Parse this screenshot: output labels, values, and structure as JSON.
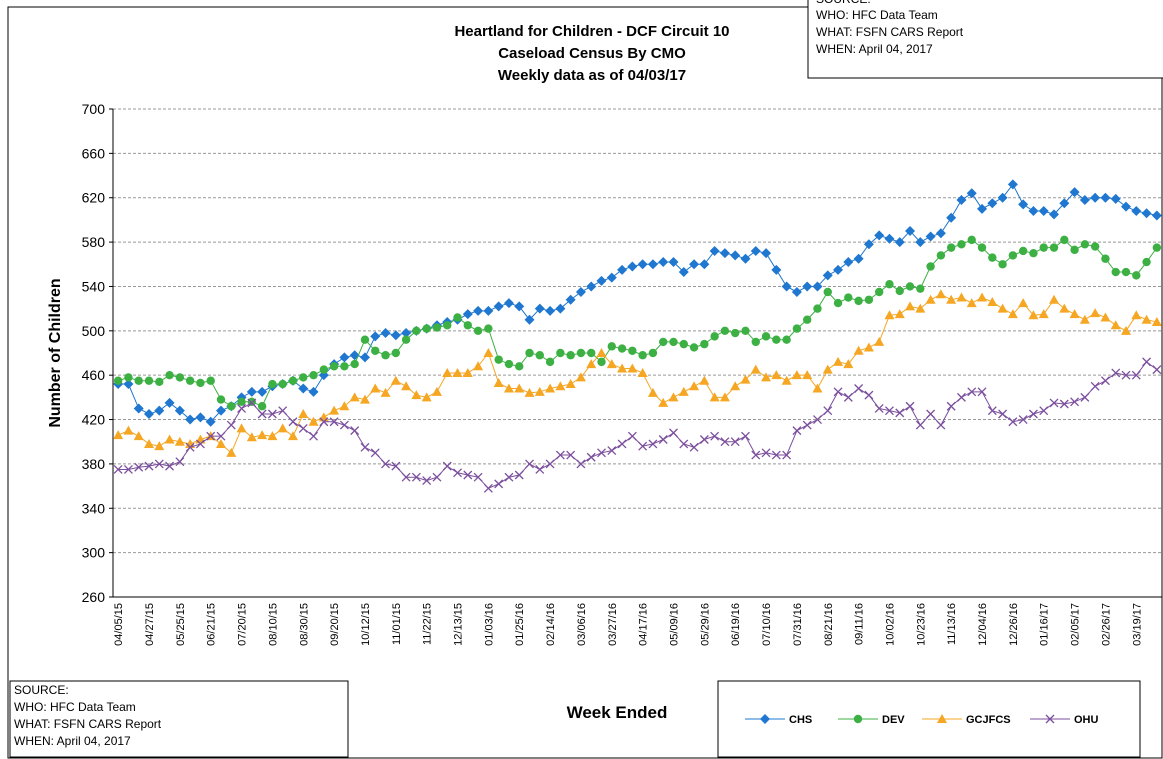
{
  "chart_data": {
    "type": "line",
    "title": [
      "Heartland for Children - DCF Circuit 10",
      "Caseload Census By CMO",
      "Weekly data as of 04/03/17"
    ],
    "x_label": "Week Ended",
    "y_label": "Number of Children",
    "source": [
      "SOURCE:",
      "WHO:  HFC Data Team",
      "WHAT:  FSFN CARS Report",
      "WHEN: April 04, 2017"
    ],
    "categories": [
      "04/05/15",
      null,
      null,
      "04/27/15",
      null,
      null,
      "05/25/15",
      null,
      null,
      "06/21/15",
      null,
      null,
      "07/20/15",
      null,
      null,
      "08/10/15",
      null,
      null,
      "08/30/15",
      null,
      null,
      "09/20/15",
      null,
      null,
      "10/12/15",
      null,
      null,
      "11/01/15",
      null,
      null,
      "11/22/15",
      null,
      null,
      "12/13/15",
      null,
      null,
      "01/03/16",
      null,
      null,
      "01/25/16",
      null,
      null,
      "02/14/16",
      null,
      null,
      "03/06/16",
      null,
      null,
      "03/27/16",
      null,
      null,
      "04/17/16",
      null,
      null,
      "05/09/16",
      null,
      null,
      "05/29/16",
      null,
      null,
      "06/19/16",
      null,
      null,
      "07/10/16",
      null,
      null,
      "07/31/16",
      null,
      null,
      "08/21/16",
      null,
      null,
      "09/11/16",
      null,
      null,
      "10/02/16",
      null,
      null,
      "10/23/16",
      null,
      null,
      "11/13/16",
      null,
      null,
      "12/04/16",
      null,
      null,
      "12/26/16",
      null,
      null,
      "01/16/17",
      null,
      null,
      "02/05/17",
      null,
      null,
      "02/26/17",
      null,
      null,
      "03/19/17",
      null,
      null
    ],
    "series": [
      {
        "name": "CHS",
        "color": "#1f77d0",
        "marker": "diamond",
        "values": [
          452,
          452,
          430,
          425,
          428,
          435,
          428,
          420,
          422,
          418,
          428,
          432,
          440,
          445,
          445,
          450,
          452,
          455,
          448,
          445,
          460,
          470,
          476,
          478,
          476,
          495,
          498,
          496,
          498,
          500,
          502,
          505,
          508,
          510,
          515,
          518,
          518,
          522,
          525,
          522,
          510,
          520,
          518,
          520,
          528,
          535,
          540,
          545,
          548,
          555,
          558,
          560,
          560,
          562,
          562,
          553,
          560,
          560,
          572,
          570,
          568,
          565,
          572,
          570,
          555,
          540,
          535,
          540,
          540,
          550,
          555,
          562,
          565,
          578,
          586,
          583,
          580,
          590,
          580,
          585,
          588,
          602,
          618,
          624,
          610,
          615,
          620,
          632,
          614,
          608,
          608,
          605,
          615,
          625,
          618,
          620,
          620,
          619,
          612,
          608,
          606,
          604
        ]
      },
      {
        "name": "DEV",
        "color": "#3cb043",
        "marker": "circle",
        "values": [
          455,
          458,
          455,
          455,
          454,
          460,
          458,
          455,
          453,
          455,
          438,
          432,
          436,
          436,
          432,
          452,
          452,
          455,
          458,
          460,
          465,
          468,
          468,
          470,
          492,
          482,
          478,
          480,
          492,
          500,
          502,
          503,
          505,
          512,
          505,
          500,
          502,
          474,
          470,
          468,
          480,
          478,
          472,
          480,
          478,
          480,
          480,
          472,
          486,
          484,
          482,
          478,
          480,
          490,
          490,
          488,
          485,
          488,
          495,
          500,
          498,
          500,
          490,
          495,
          492,
          492,
          502,
          510,
          520,
          535,
          525,
          530,
          527,
          528,
          535,
          542,
          536,
          540,
          538,
          558,
          568,
          575,
          578,
          582,
          575,
          566,
          560,
          568,
          572,
          570,
          575,
          575,
          582,
          573,
          578,
          576,
          565,
          553,
          553,
          550,
          562,
          575
        ]
      },
      {
        "name": "GCJFCS",
        "color": "#f5a623",
        "marker": "triangle",
        "values": [
          406,
          410,
          405,
          398,
          396,
          402,
          400,
          398,
          402,
          405,
          398,
          390,
          412,
          404,
          406,
          405,
          412,
          405,
          425,
          418,
          422,
          428,
          432,
          440,
          438,
          448,
          444,
          455,
          450,
          442,
          440,
          445,
          462,
          462,
          462,
          468,
          480,
          453,
          448,
          448,
          444,
          445,
          448,
          450,
          452,
          458,
          470,
          480,
          470,
          466,
          466,
          462,
          444,
          435,
          440,
          445,
          450,
          455,
          440,
          440,
          450,
          456,
          465,
          458,
          460,
          455,
          460,
          460,
          448,
          465,
          472,
          470,
          482,
          485,
          490,
          514,
          515,
          522,
          520,
          528,
          533,
          528,
          530,
          525,
          530,
          526,
          520,
          515,
          525,
          514,
          515,
          528,
          520,
          515,
          510,
          516,
          512,
          505,
          500,
          514,
          510,
          508
        ]
      },
      {
        "name": "OHU",
        "color": "#7b4f9d",
        "marker": "x",
        "values": [
          375,
          375,
          377,
          378,
          380,
          378,
          382,
          395,
          398,
          405,
          405,
          415,
          430,
          435,
          425,
          425,
          428,
          418,
          412,
          405,
          418,
          418,
          415,
          410,
          395,
          390,
          380,
          378,
          368,
          368,
          365,
          368,
          378,
          372,
          370,
          368,
          358,
          362,
          368,
          370,
          380,
          375,
          380,
          388,
          388,
          380,
          386,
          390,
          392,
          398,
          405,
          396,
          398,
          402,
          408,
          398,
          395,
          402,
          405,
          400,
          400,
          405,
          388,
          390,
          388,
          388,
          410,
          415,
          420,
          428,
          445,
          440,
          448,
          442,
          430,
          428,
          426,
          432,
          415,
          425,
          415,
          432,
          440,
          445,
          445,
          428,
          425,
          418,
          420,
          425,
          428,
          435,
          434,
          436,
          440,
          450,
          455,
          462,
          460,
          460,
          472,
          465
        ]
      }
    ],
    "ylim": [
      260,
      700
    ],
    "yticks": [
      260,
      300,
      340,
      380,
      420,
      460,
      500,
      540,
      580,
      620,
      660,
      700
    ],
    "grid": true
  }
}
